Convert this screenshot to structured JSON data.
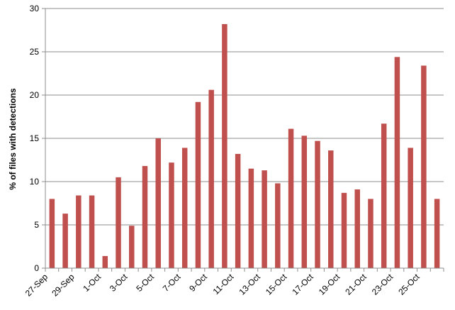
{
  "chart_data": {
    "type": "bar",
    "title": "",
    "xlabel": "",
    "ylabel": "% of files with detections",
    "ylim": [
      0,
      30
    ],
    "yticks": [
      0,
      5,
      10,
      15,
      20,
      25,
      30
    ],
    "grid": true,
    "legend": "none",
    "bar_color": "#c0504d",
    "x_tick_labels": [
      "27-Sep",
      "29-Sep",
      "1-Oct",
      "3-Oct",
      "5-Oct",
      "7-Oct",
      "9-Oct",
      "11-Oct",
      "13-Oct",
      "15-Oct",
      "17-Oct",
      "19-Oct",
      "21-Oct",
      "23-Oct",
      "25-Oct"
    ],
    "categories": [
      "27-Sep",
      "28-Sep",
      "29-Sep",
      "30-Sep",
      "1-Oct",
      "2-Oct",
      "3-Oct",
      "4-Oct",
      "5-Oct",
      "6-Oct",
      "7-Oct",
      "8-Oct",
      "9-Oct",
      "10-Oct",
      "11-Oct",
      "12-Oct",
      "13-Oct",
      "14-Oct",
      "15-Oct",
      "16-Oct",
      "17-Oct",
      "18-Oct",
      "19-Oct",
      "20-Oct",
      "21-Oct",
      "22-Oct",
      "23-Oct",
      "24-Oct",
      "25-Oct",
      "26-Oct"
    ],
    "values": [
      8.0,
      6.3,
      8.4,
      8.4,
      1.4,
      10.5,
      4.9,
      11.8,
      15.0,
      12.2,
      13.9,
      19.2,
      20.6,
      28.2,
      13.2,
      11.5,
      11.3,
      9.8,
      16.1,
      15.3,
      14.7,
      13.6,
      8.7,
      9.1,
      8.0,
      16.7,
      24.4,
      13.9,
      23.4,
      8.0
    ]
  }
}
